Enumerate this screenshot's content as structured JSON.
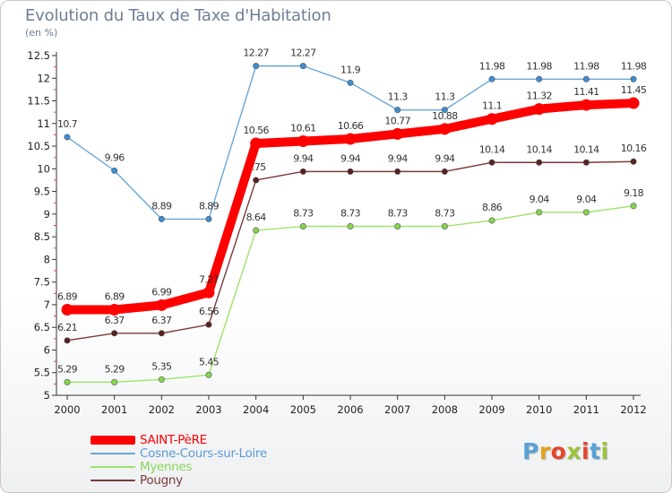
{
  "page": {
    "title": "Evolution du Taux de Taxe d'Habitation",
    "subtitle": "(en %)"
  },
  "logo": {
    "letters": [
      "P",
      "r",
      "o",
      "x",
      "i",
      "t",
      "i"
    ],
    "colors": [
      "#5aa1d6",
      "#e3a31d",
      "#e6452b",
      "#9ac33a",
      "#e6452b",
      "#5aa1d6",
      "#9ac33a"
    ]
  },
  "chart_data": {
    "type": "line",
    "title": "Evolution du Taux de Taxe d'Habitation",
    "ylabel": "(en %)",
    "xlabel": "",
    "x": [
      "2000",
      "2001",
      "2002",
      "2003",
      "2004",
      "2005",
      "2006",
      "2007",
      "2008",
      "2009",
      "2010",
      "2011",
      "2012"
    ],
    "ylim": [
      5,
      12.5
    ],
    "ytick_step": 0.5,
    "yticks": [
      "5",
      "5.5",
      "6",
      "6.5",
      "7",
      "7.5",
      "8",
      "8.5",
      "9",
      "9.5",
      "10",
      "10.5",
      "11",
      "11.5",
      "12",
      "12.5"
    ],
    "grid": false,
    "legend_position": "bottom-left",
    "series": [
      {
        "name": "SAINT-PèRE",
        "color": "#ff0000",
        "values": [
          6.89,
          6.89,
          6.99,
          7.27,
          10.56,
          10.61,
          10.66,
          10.77,
          10.88,
          11.1,
          11.32,
          11.41,
          11.45
        ],
        "labels": [
          "6.89",
          "6.89",
          "6.99",
          "7.27",
          "10.56",
          "10.61",
          "10.66",
          "10.77",
          "10.88",
          "11.1",
          "11.32",
          "11.41",
          "11.45"
        ]
      },
      {
        "name": "Cosne-Cours-sur-Loire",
        "color": "#6aa6d6",
        "values": [
          10.7,
          9.96,
          8.89,
          8.89,
          12.27,
          12.27,
          11.9,
          11.3,
          11.3,
          11.98,
          11.98,
          11.98,
          11.98
        ],
        "labels": [
          "10.7",
          "9.96",
          "8.89",
          "8.89",
          "12.27",
          "12.27",
          "11.9",
          "11.3",
          "11.3",
          "11.98",
          "11.98",
          "11.98",
          "11.98"
        ]
      },
      {
        "name": "Myennes",
        "color": "#9ee36a",
        "values": [
          5.29,
          5.29,
          5.35,
          5.45,
          8.64,
          8.73,
          8.73,
          8.73,
          8.73,
          8.86,
          9.04,
          9.04,
          9.18
        ],
        "labels": [
          "5.29",
          "5.29",
          "5.35",
          "5.45",
          "8.64",
          "8.73",
          "8.73",
          "8.73",
          "8.73",
          "8.86",
          "9.04",
          "9.04",
          "9.18"
        ]
      },
      {
        "name": "Pougny",
        "color": "#7a3a3a",
        "values": [
          6.21,
          6.37,
          6.37,
          6.56,
          9.75,
          9.94,
          9.94,
          9.94,
          9.94,
          10.14,
          10.14,
          10.14,
          10.16
        ],
        "labels": [
          "6.21",
          "6.37",
          "6.37",
          "6.56",
          "9.75",
          "9.94",
          "9.94",
          "9.94",
          "9.94",
          "10.14",
          "10.14",
          "10.14",
          "10.16"
        ]
      }
    ]
  }
}
